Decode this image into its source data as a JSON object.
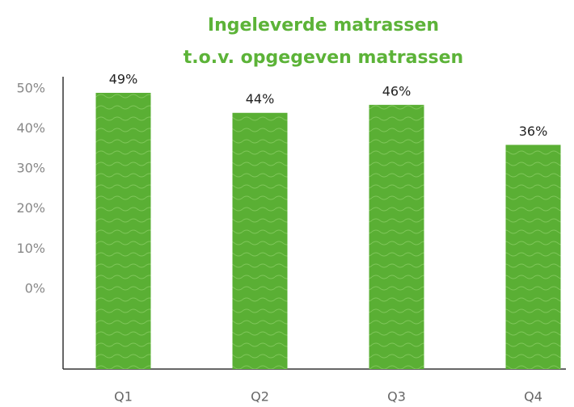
{
  "chart_data": {
    "type": "bar",
    "title": [
      "Ingeleverde matrassen",
      "t.o.v. opgegeven matrassen"
    ],
    "categories": [
      "Q1",
      "Q2",
      "Q3",
      "Q4"
    ],
    "values": [
      49,
      44,
      46,
      36
    ],
    "value_labels": [
      "49%",
      "44%",
      "46%",
      "36%"
    ],
    "color": "#5aaf34",
    "ylim": [
      -20,
      50
    ],
    "yticks": [
      {
        "value": 0,
        "label": "0%"
      },
      {
        "value": 10,
        "label": "10%"
      },
      {
        "value": 20,
        "label": "20%"
      },
      {
        "value": 30,
        "label": "30%"
      },
      {
        "value": 40,
        "label": "40%"
      },
      {
        "value": 50,
        "label": "50%"
      }
    ],
    "grid": false
  }
}
